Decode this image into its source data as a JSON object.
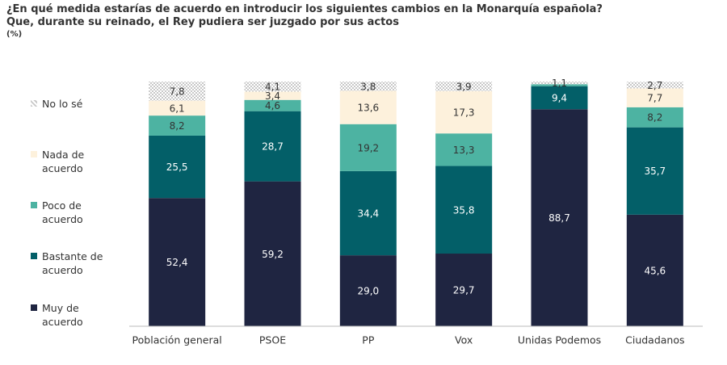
{
  "chart_data": {
    "type": "stacked_bar",
    "title": "¿En qué medida estarías de acuerdo en introducir los siguientes cambios en la Monarquía española?",
    "subtitle": "Que, durante su reinado, el Rey pudiera ser juzgado por sus actos",
    "unit": "(%)",
    "categories": [
      "Población general",
      "PSOE",
      "PP",
      "Vox",
      "Unidas Podemos",
      "Ciudadanos"
    ],
    "ylim": [
      0,
      100
    ],
    "series": [
      {
        "name": "Muy de acuerdo",
        "color": "#1f2541",
        "values": [
          52.4,
          59.2,
          29.0,
          29.7,
          88.7,
          45.6
        ],
        "value_labels": [
          "52,4",
          "59,2",
          "29,0",
          "29,7",
          "88,7",
          "45,6"
        ]
      },
      {
        "name": "Bastante de acuerdo",
        "color": "#035f68",
        "values": [
          25.5,
          28.7,
          34.4,
          35.8,
          9.4,
          35.7
        ],
        "value_labels": [
          "25,5",
          "28,7",
          "34,4",
          "35,8",
          "9,4",
          "35,7"
        ]
      },
      {
        "name": "Poco de acuerdo",
        "color": "#4db3a2",
        "values": [
          8.2,
          4.6,
          19.2,
          13.3,
          0.8,
          8.2
        ],
        "value_labels": [
          "8,2",
          "4,6",
          "19,2",
          "13,3",
          null,
          "8,2"
        ]
      },
      {
        "name": "Nada de acuerdo",
        "color": "#fdf1dc",
        "values": [
          6.1,
          3.4,
          13.6,
          17.3,
          0,
          7.7
        ],
        "value_labels": [
          "6,1",
          "3,4",
          "13,6",
          "17,3",
          null,
          "7,7"
        ]
      },
      {
        "name": "No lo sé",
        "color": "#c8c8c8",
        "pattern": "dots",
        "values": [
          7.8,
          4.1,
          3.8,
          3.9,
          1.1,
          2.7
        ],
        "value_labels": [
          "7,8",
          "4,1",
          "3,8",
          "3,9",
          "1,1",
          "2,7"
        ]
      }
    ]
  }
}
